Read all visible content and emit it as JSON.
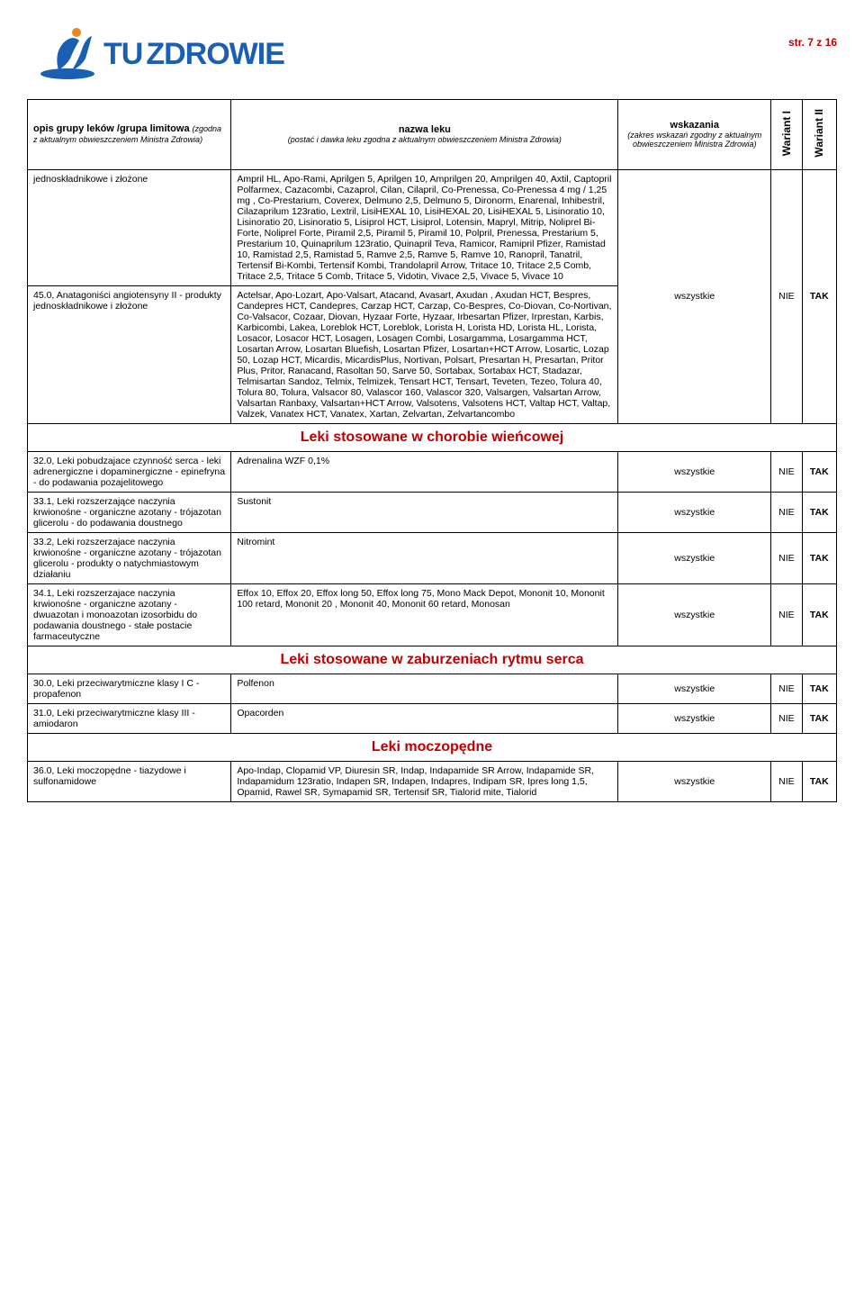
{
  "page_number": "str. 7 z 16",
  "logo": {
    "tu": "TU",
    "zdrowie": "ZDROWIE"
  },
  "colors": {
    "red": "#c00000",
    "blue_logo": "#1a5fb4",
    "orange": "#e8891a"
  },
  "table": {
    "headers": {
      "col1_title": "opis grupy leków /grupa limitowa",
      "col1_sub": "(zgodna z aktualnym obwieszczeniem Ministra Zdrowia)",
      "col2_title": "nazwa leku",
      "col2_sub": "(postać i dawka leku zgodna z aktualnym obwieszczeniem Ministra Zdrowia)",
      "col3_title": "wskazania",
      "col3_sub": "(zakres wskazań zgodny z aktualnym obwieszczeniem Ministra Zdrowia)",
      "col4": "Wariant I",
      "col5": "Wariant II"
    },
    "rows": [
      {
        "col1": "jednoskładnikowe i złożone",
        "col2": "Ampril HL, Apo-Rami, Aprilgen 5, Aprilgen 10, Amprilgen 20, Amprilgen 40, Axtil, Captopril Polfarmex, Cazacombi, Cazaprol, Cilan, Cilapril, Co-Prenessa, Co-Prenessa 4 mg / 1,25 mg , Co-Prestarium, Coverex, Delmuno 2,5, Delmuno 5, Dironorm, Enarenal, Inhibestril, Cilazaprilum 123ratio, Lextril, LisiHEXAL 10, LisiHEXAL 20, LisiHEXAL 5, Lisinoratio 10, Lisinoratio 20, Lisinoratio 5, Lisiprol HCT, Lisiprol, Lotensin, Mapryl, Mitrip, Noliprel Bi-Forte, Noliprel Forte, Piramil 2,5, Piramil 5, Piramil 10, Polpril, Prenessa, Prestarium 5, Prestarium 10, Quinaprilum 123ratio, Quinapril Teva, Ramicor, Ramipril Pfizer, Ramistad 10, Ramistad 2,5, Ramistad 5, Ramve 2,5, Ramve 5, Ramve 10, Ranopril, Tanatril, Tertensif Bi-Kombi, Tertensif Kombi, Trandolapril Arrow, Tritace 10, Tritace 2,5 Comb, Tritace 2,5, Tritace 5 Comb, Tritace 5, Vidotin, Vivace 2,5, Vivace 5, Vivace 10",
        "merged_down_1": true
      },
      {
        "col1": "45.0, Anatagoniści angiotensyny II - produkty jednoskładnikowe i złożone",
        "col2": "Actelsar, Apo-Lozart, Apo-Valsart, Atacand, Avasart, Axudan , Axudan HCT, Bespres, Candepres HCT, Candepres, Carzap HCT, Carzap, Co-Bespres, Co-Diovan, Co-Nortivan, Co-Valsacor, Cozaar, Diovan, Hyzaar Forte, Hyzaar, Irbesartan Pfizer, Irprestan, Karbis, Karbicombi, Lakea, Loreblok HCT, Loreblok, Lorista H, Lorista HD, Lorista HL, Lorista, Losacor, Losacor HCT, Losagen, Losagen Combi, Losargamma, Losargamma HCT, Losartan Arrow, Losartan Bluefish, Losartan Pfizer, Losartan+HCT Arrow, Losartic, Lozap 50, Lozap HCT, Micardis, MicardisPlus, Nortivan, Polsart, Presartan H, Presartan, Pritor Plus, Pritor, Ranacand, Rasoltan 50, Sarve 50, Sortabax, Sortabax HCT, Stadazar, Telmisartan Sandoz, Telmix, Telmizek, Tensart HCT, Tensart, Teveten, Tezeo, Tolura 40, Tolura 80, Tolura, Valsacor 80, Valascor 160, Valascor 320, Valsargen, Valsartan Arrow, Valsartan Ranbaxy, Valsartan+HCT Arrow, Valsotens, Valsotens HCT, Valtap HCT, Valtap, Valzek, Vanatex HCT, Vanatex, Xartan, Zelvartan, Zelvartancombo",
        "col3": "wszystkie",
        "col4": "NIE",
        "col5": "TAK"
      },
      {
        "type": "section",
        "title": "Leki stosowane w chorobie wieńcowej",
        "color": "#c00000"
      },
      {
        "col1": "32.0, Leki pobudzajace czynność serca - leki adrenergiczne i dopaminergiczne - epinefryna - do podawania pozajelitowego",
        "col2": "Adrenalina WZF 0,1%",
        "col3": "wszystkie",
        "col4": "NIE",
        "col5": "TAK"
      },
      {
        "col1": "33.1, Leki rozszerzające naczynia krwionośne - organiczne azotany - trójazotan glicerolu - do podawania doustnego",
        "col2": "Sustonit",
        "col3": "wszystkie",
        "col4": "NIE",
        "col5": "TAK"
      },
      {
        "col1": "33.2, Leki rozszerzajace naczynia krwionośne - organiczne azotany - trójazotan glicerolu - produkty o natychmiastowym działaniu",
        "col2": "Nitromint",
        "col3": "wszystkie",
        "col4": "NIE",
        "col5": "TAK"
      },
      {
        "col1": "34.1, Leki rozszerzajace naczynia krwionośne - organiczne azotany - dwuazotan i monoazotan izosorbidu do podawania doustnego - stałe postacie farmaceutyczne",
        "col2": "Effox 10, Effox 20, Effox long 50, Effox long 75, Mono Mack Depot, Mononit 10, Mononit 100 retard, Mononit 20 , Mononit 40, Mononit 60 retard, Monosan",
        "col3": "wszystkie",
        "col4": "NIE",
        "col5": "TAK"
      },
      {
        "type": "section",
        "title": "Leki stosowane w zaburzeniach rytmu serca",
        "color": "#c00000"
      },
      {
        "col1": "30.0, Leki przeciwarytmiczne klasy I C - propafenon",
        "col2": "Polfenon",
        "col3": "wszystkie",
        "col4": "NIE",
        "col5": "TAK"
      },
      {
        "col1": "31.0, Leki przeciwarytmiczne klasy III - amiodaron",
        "col2": "Opacorden",
        "col3": "wszystkie",
        "col4": "NIE",
        "col5": "TAK"
      },
      {
        "type": "section",
        "title": "Leki moczopędne",
        "color": "#c00000"
      },
      {
        "col1": "36.0, Leki moczopędne - tiazydowe i sulfonamidowe",
        "col2": "Apo-Indap, Clopamid VP, Diuresin SR, Indap, Indapamide SR Arrow, Indapamide SR, Indapamidum 123ratio, Indapen SR, Indapen, Indapres, Indipam SR, Ipres long 1,5, Opamid, Rawel SR, Symapamid SR, Tertensif SR, Tialorid mite, Tialorid",
        "col3": "wszystkie",
        "col4": "NIE",
        "col5": "TAK"
      }
    ]
  }
}
